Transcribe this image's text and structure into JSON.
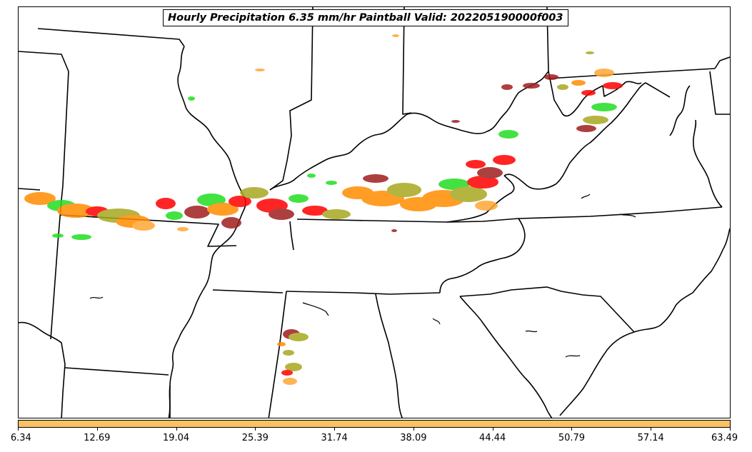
{
  "title": "Hourly Precipitation 6.35 mm/hr Paintball Valid: 202205190000f003",
  "colorbar": {
    "color": "#fbc264",
    "tick_labels": [
      "6.34",
      "12.69",
      "19.04",
      "25.39",
      "31.74",
      "38.09",
      "44.44",
      "50.79",
      "57.14",
      "63.49"
    ]
  },
  "member_colors": [
    "#ff0000",
    "#ff8c00",
    "#22dd22",
    "#a01e1e",
    "#a8a820",
    "#ffa633"
  ],
  "colors": {
    "background": "#ffffff",
    "borders": "#000000"
  }
}
